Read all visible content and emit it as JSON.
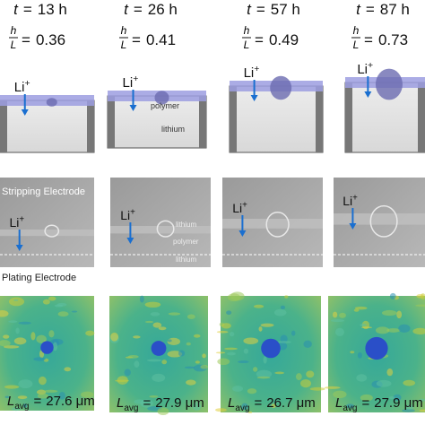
{
  "labels": {
    "time_symbol": "t",
    "equals": "=",
    "ratio_numerator": "h",
    "ratio_denominator": "L",
    "lavg_symbol": "L",
    "lavg_subscript": "avg",
    "li": "Li",
    "li_charge": "+"
  },
  "columns": [
    {
      "time": "13 h",
      "ratio": "0.36",
      "lavg": "27.6 μm"
    },
    {
      "time": "26 h",
      "ratio": "0.41",
      "lavg": "27.9 μm"
    },
    {
      "time": "57 h",
      "ratio": "0.49",
      "lavg": "26.7 μm"
    },
    {
      "time": "87 h",
      "ratio": "0.73",
      "lavg": "27.9 μm"
    }
  ],
  "model_labels": {
    "polymer": "polymer",
    "lithium": "lithium"
  },
  "sem_labels": {
    "stripping": "Stripping Electrode",
    "plating": "Plating Electrode",
    "lithium_top": "lithium",
    "polymer": "polymer",
    "lithium_bottom": "lithium"
  }
}
